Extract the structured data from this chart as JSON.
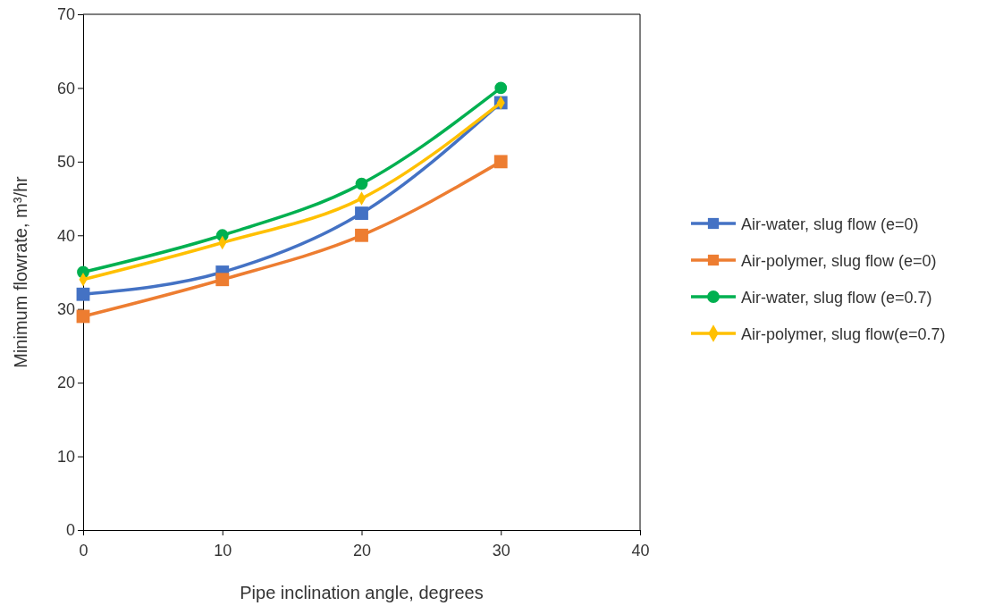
{
  "chart_data": {
    "type": "line",
    "xlabel": "Pipe inclination angle, degrees",
    "ylabel": "Minimum flowrate, m³/hr",
    "x": [
      0,
      10,
      20,
      30
    ],
    "xlim": [
      0,
      40
    ],
    "xticks": [
      0,
      10,
      20,
      30,
      40
    ],
    "ylim": [
      0,
      70
    ],
    "yticks": [
      0,
      10,
      20,
      30,
      40,
      50,
      60,
      70
    ],
    "grid": false,
    "legend": "right",
    "line_style": "solid",
    "series": [
      {
        "name": "Air-water, slug flow (e=0)",
        "color": "#4472c4",
        "marker": "square",
        "values": [
          32,
          35,
          43,
          58
        ]
      },
      {
        "name": "Air-polymer, slug flow (e=0)",
        "color": "#ed7d31",
        "marker": "square",
        "values": [
          29,
          34,
          40,
          50
        ]
      },
      {
        "name": "Air-water, slug flow (e=0.7)",
        "color": "#00b050",
        "marker": "circle",
        "values": [
          35,
          40,
          47,
          60
        ]
      },
      {
        "name": "Air-polymer, slug flow(e=0.7)",
        "color": "#ffc000",
        "marker": "diamond",
        "values": [
          34,
          39,
          45,
          58
        ]
      }
    ]
  }
}
